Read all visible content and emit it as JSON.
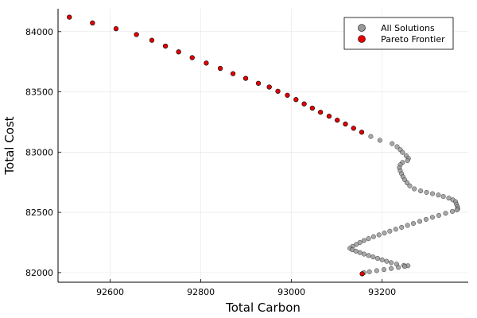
{
  "chart_data": {
    "type": "scatter",
    "xlabel": "Total Carbon",
    "ylabel": "Total Cost",
    "xlim": [
      92485,
      93390
    ],
    "ylim": [
      81920,
      84190
    ],
    "xticks": [
      92600,
      92800,
      93000,
      93200
    ],
    "yticks": [
      82000,
      82500,
      83000,
      83500,
      84000
    ],
    "grid": true,
    "legend_position": "top-right",
    "series": [
      {
        "name": "All Solutions",
        "color": "#999999",
        "points": [
          [
            92510,
            84120
          ],
          [
            92561,
            84072
          ],
          [
            92613,
            84024
          ],
          [
            92658,
            83976
          ],
          [
            92692,
            83928
          ],
          [
            92722,
            83880
          ],
          [
            92751,
            83832
          ],
          [
            92781,
            83784
          ],
          [
            92812,
            83739
          ],
          [
            92843,
            83695
          ],
          [
            92871,
            83651
          ],
          [
            92899,
            83612
          ],
          [
            92927,
            83571
          ],
          [
            92951,
            83540
          ],
          [
            92970,
            83505
          ],
          [
            92991,
            83472
          ],
          [
            93010,
            83436
          ],
          [
            93028,
            83400
          ],
          [
            93046,
            83365
          ],
          [
            93064,
            83331
          ],
          [
            93083,
            83298
          ],
          [
            93101,
            83265
          ],
          [
            93119,
            83233
          ],
          [
            93137,
            83198
          ],
          [
            93155,
            83165
          ],
          [
            93175,
            83130
          ],
          [
            93195,
            83098
          ],
          [
            93222,
            83070
          ],
          [
            93233,
            83045
          ],
          [
            93240,
            83020
          ],
          [
            93245,
            82998
          ],
          [
            93253,
            82970
          ],
          [
            93258,
            82948
          ],
          [
            93256,
            82930
          ],
          [
            93245,
            82914
          ],
          [
            93240,
            82895
          ],
          [
            93238,
            82870
          ],
          [
            93240,
            82845
          ],
          [
            93243,
            82820
          ],
          [
            93246,
            82795
          ],
          [
            93250,
            82770
          ],
          [
            93255,
            82745
          ],
          [
            93261,
            82720
          ],
          [
            93271,
            82695
          ],
          [
            93285,
            82678
          ],
          [
            93298,
            82666
          ],
          [
            93311,
            82655
          ],
          [
            93324,
            82644
          ],
          [
            93335,
            82632
          ],
          [
            93347,
            82618
          ],
          [
            93356,
            82604
          ],
          [
            93362,
            82588
          ],
          [
            93364,
            82568
          ],
          [
            93366,
            82548
          ],
          [
            93367,
            82530
          ],
          [
            93365,
            82520
          ],
          [
            93355,
            82508
          ],
          [
            93340,
            82492
          ],
          [
            93325,
            82475
          ],
          [
            93311,
            82459
          ],
          [
            93297,
            82442
          ],
          [
            93283,
            82425
          ],
          [
            93269,
            82408
          ],
          [
            93256,
            82392
          ],
          [
            93243,
            82376
          ],
          [
            93230,
            82360
          ],
          [
            93217,
            82344
          ],
          [
            93205,
            82328
          ],
          [
            93193,
            82313
          ],
          [
            93181,
            82298
          ],
          [
            93170,
            82282
          ],
          [
            93160,
            82266
          ],
          [
            93151,
            82250
          ],
          [
            93143,
            82234
          ],
          [
            93135,
            82218
          ],
          [
            93129,
            82202
          ],
          [
            93134,
            82190
          ],
          [
            93142,
            82178
          ],
          [
            93151,
            82166
          ],
          [
            93160,
            82154
          ],
          [
            93170,
            82142
          ],
          [
            93180,
            82130
          ],
          [
            93190,
            82118
          ],
          [
            93200,
            82106
          ],
          [
            93210,
            82094
          ],
          [
            93220,
            82082
          ],
          [
            93232,
            82070
          ],
          [
            93248,
            82060
          ],
          [
            93257,
            82057
          ],
          [
            93250,
            82051
          ],
          [
            93236,
            82043
          ],
          [
            93220,
            82034
          ],
          [
            93204,
            82025
          ],
          [
            93188,
            82016
          ],
          [
            93172,
            82007
          ],
          [
            93160,
            81999
          ],
          [
            93156,
            81990
          ]
        ]
      },
      {
        "name": "Pareto Frontier",
        "color": "#e60000",
        "points": [
          [
            92510,
            84120
          ],
          [
            92561,
            84072
          ],
          [
            92613,
            84024
          ],
          [
            92658,
            83976
          ],
          [
            92692,
            83928
          ],
          [
            92722,
            83880
          ],
          [
            92751,
            83832
          ],
          [
            92781,
            83784
          ],
          [
            92812,
            83739
          ],
          [
            92843,
            83695
          ],
          [
            92871,
            83651
          ],
          [
            92899,
            83612
          ],
          [
            92927,
            83571
          ],
          [
            92951,
            83540
          ],
          [
            92970,
            83505
          ],
          [
            92991,
            83472
          ],
          [
            93010,
            83436
          ],
          [
            93028,
            83400
          ],
          [
            93046,
            83365
          ],
          [
            93064,
            83331
          ],
          [
            93083,
            83298
          ],
          [
            93101,
            83265
          ],
          [
            93119,
            83233
          ],
          [
            93137,
            83198
          ],
          [
            93155,
            83165
          ],
          [
            93156,
            81990
          ]
        ]
      }
    ]
  }
}
